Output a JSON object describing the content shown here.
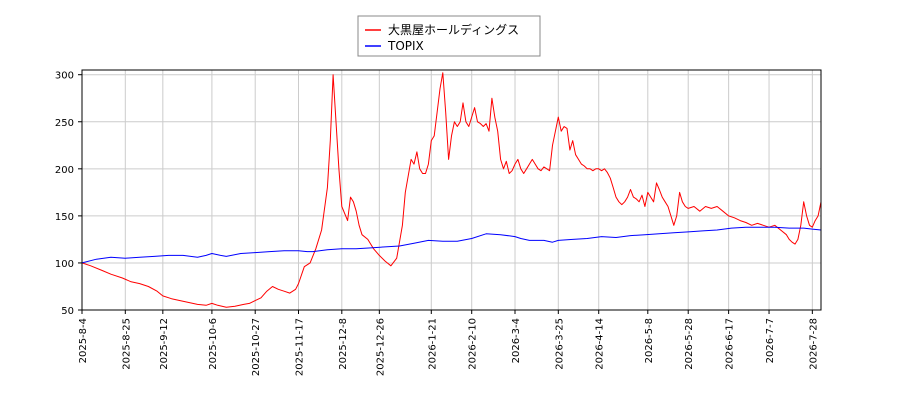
{
  "chart_data": {
    "type": "line",
    "xlabel": "",
    "ylabel": "",
    "ylim": [
      50,
      305
    ],
    "y_ticks": [
      50,
      100,
      150,
      200,
      250,
      300
    ],
    "x_ticks": [
      "2025-8-4",
      "2025-8-25",
      "2025-9-12",
      "2025-10-6",
      "2025-10-27",
      "2025-11-17",
      "2025-12-8",
      "2025-12-26",
      "2026-1-21",
      "2026-2-10",
      "2026-3-4",
      "2026-3-25",
      "2026-4-14",
      "2026-5-8",
      "2026-5-28",
      "2026-6-17",
      "2026-7-7",
      "2026-7-28"
    ],
    "x_tick_index": [
      0,
      15,
      28,
      45,
      60,
      75,
      90,
      103,
      121,
      135,
      150,
      165,
      179,
      196,
      210,
      224,
      238,
      253
    ],
    "grid": true,
    "legend_placement": "top-center",
    "series": [
      {
        "name": "大黒屋ホールディングス",
        "color": "#ff0000",
        "points": [
          [
            0,
            100
          ],
          [
            3,
            97
          ],
          [
            7,
            92
          ],
          [
            10,
            88
          ],
          [
            14,
            84
          ],
          [
            17,
            80
          ],
          [
            20,
            78
          ],
          [
            23,
            75
          ],
          [
            26,
            70
          ],
          [
            28,
            65
          ],
          [
            31,
            62
          ],
          [
            34,
            60
          ],
          [
            37,
            58
          ],
          [
            40,
            56
          ],
          [
            43,
            55
          ],
          [
            45,
            57
          ],
          [
            47,
            55
          ],
          [
            50,
            53
          ],
          [
            53,
            54
          ],
          [
            56,
            56
          ],
          [
            58,
            57
          ],
          [
            60,
            60
          ],
          [
            62,
            63
          ],
          [
            64,
            70
          ],
          [
            66,
            75
          ],
          [
            68,
            72
          ],
          [
            70,
            70
          ],
          [
            72,
            68
          ],
          [
            74,
            72
          ],
          [
            75,
            78
          ],
          [
            77,
            96
          ],
          [
            79,
            100
          ],
          [
            81,
            115
          ],
          [
            83,
            135
          ],
          [
            85,
            180
          ],
          [
            86,
            230
          ],
          [
            87,
            300
          ],
          [
            88,
            250
          ],
          [
            89,
            200
          ],
          [
            90,
            160
          ],
          [
            92,
            145
          ],
          [
            93,
            170
          ],
          [
            94,
            165
          ],
          [
            95,
            155
          ],
          [
            96,
            140
          ],
          [
            97,
            130
          ],
          [
            99,
            125
          ],
          [
            101,
            115
          ],
          [
            103,
            108
          ],
          [
            105,
            102
          ],
          [
            107,
            97
          ],
          [
            109,
            105
          ],
          [
            111,
            140
          ],
          [
            112,
            175
          ],
          [
            114,
            210
          ],
          [
            115,
            205
          ],
          [
            116,
            218
          ],
          [
            117,
            200
          ],
          [
            118,
            195
          ],
          [
            119,
            195
          ],
          [
            120,
            205
          ],
          [
            121,
            230
          ],
          [
            122,
            235
          ],
          [
            123,
            260
          ],
          [
            124,
            285
          ],
          [
            125,
            302
          ],
          [
            126,
            260
          ],
          [
            127,
            210
          ],
          [
            128,
            235
          ],
          [
            129,
            250
          ],
          [
            130,
            245
          ],
          [
            131,
            250
          ],
          [
            132,
            270
          ],
          [
            133,
            250
          ],
          [
            134,
            245
          ],
          [
            135,
            255
          ],
          [
            136,
            265
          ],
          [
            137,
            250
          ],
          [
            138,
            248
          ],
          [
            139,
            245
          ],
          [
            140,
            248
          ],
          [
            141,
            240
          ],
          [
            142,
            275
          ],
          [
            143,
            255
          ],
          [
            144,
            240
          ],
          [
            145,
            210
          ],
          [
            146,
            200
          ],
          [
            147,
            208
          ],
          [
            148,
            195
          ],
          [
            149,
            198
          ],
          [
            150,
            205
          ],
          [
            151,
            210
          ],
          [
            152,
            200
          ],
          [
            153,
            195
          ],
          [
            154,
            200
          ],
          [
            155,
            205
          ],
          [
            156,
            210
          ],
          [
            157,
            205
          ],
          [
            158,
            200
          ],
          [
            159,
            198
          ],
          [
            160,
            202
          ],
          [
            161,
            200
          ],
          [
            162,
            198
          ],
          [
            163,
            225
          ],
          [
            164,
            240
          ],
          [
            165,
            255
          ],
          [
            166,
            240
          ],
          [
            167,
            245
          ],
          [
            168,
            243
          ],
          [
            169,
            220
          ],
          [
            170,
            230
          ],
          [
            171,
            215
          ],
          [
            172,
            210
          ],
          [
            173,
            205
          ],
          [
            174,
            203
          ],
          [
            175,
            200
          ],
          [
            176,
            200
          ],
          [
            177,
            198
          ],
          [
            178,
            200
          ],
          [
            179,
            200
          ],
          [
            180,
            198
          ],
          [
            181,
            200
          ],
          [
            182,
            196
          ],
          [
            183,
            190
          ],
          [
            184,
            180
          ],
          [
            185,
            170
          ],
          [
            186,
            165
          ],
          [
            187,
            162
          ],
          [
            188,
            165
          ],
          [
            189,
            170
          ],
          [
            190,
            178
          ],
          [
            191,
            170
          ],
          [
            192,
            168
          ],
          [
            193,
            165
          ],
          [
            194,
            172
          ],
          [
            195,
            160
          ],
          [
            196,
            175
          ],
          [
            197,
            170
          ],
          [
            198,
            165
          ],
          [
            199,
            185
          ],
          [
            200,
            178
          ],
          [
            201,
            170
          ],
          [
            202,
            165
          ],
          [
            203,
            160
          ],
          [
            204,
            150
          ],
          [
            205,
            140
          ],
          [
            206,
            150
          ],
          [
            207,
            175
          ],
          [
            208,
            165
          ],
          [
            209,
            160
          ],
          [
            210,
            158
          ],
          [
            212,
            160
          ],
          [
            214,
            155
          ],
          [
            216,
            160
          ],
          [
            218,
            158
          ],
          [
            220,
            160
          ],
          [
            222,
            155
          ],
          [
            224,
            150
          ],
          [
            226,
            148
          ],
          [
            228,
            145
          ],
          [
            230,
            143
          ],
          [
            232,
            140
          ],
          [
            234,
            142
          ],
          [
            236,
            140
          ],
          [
            238,
            138
          ],
          [
            240,
            140
          ],
          [
            242,
            135
          ],
          [
            244,
            130
          ],
          [
            245,
            125
          ],
          [
            246,
            122
          ],
          [
            247,
            120
          ],
          [
            248,
            125
          ],
          [
            249,
            140
          ],
          [
            250,
            165
          ],
          [
            251,
            150
          ],
          [
            252,
            140
          ],
          [
            253,
            138
          ],
          [
            254,
            145
          ],
          [
            255,
            150
          ],
          [
            256,
            165
          ]
        ]
      },
      {
        "name": "TOPIX",
        "color": "#0000ff",
        "points": [
          [
            0,
            100
          ],
          [
            5,
            104
          ],
          [
            10,
            106
          ],
          [
            15,
            105
          ],
          [
            20,
            106
          ],
          [
            25,
            107
          ],
          [
            30,
            108
          ],
          [
            35,
            108
          ],
          [
            40,
            106
          ],
          [
            43,
            108
          ],
          [
            45,
            110
          ],
          [
            48,
            108
          ],
          [
            50,
            107
          ],
          [
            55,
            110
          ],
          [
            60,
            111
          ],
          [
            65,
            112
          ],
          [
            70,
            113
          ],
          [
            75,
            113
          ],
          [
            78,
            112
          ],
          [
            80,
            112
          ],
          [
            85,
            114
          ],
          [
            90,
            115
          ],
          [
            95,
            115
          ],
          [
            100,
            116
          ],
          [
            105,
            117
          ],
          [
            110,
            118
          ],
          [
            115,
            121
          ],
          [
            120,
            124
          ],
          [
            125,
            123
          ],
          [
            130,
            123
          ],
          [
            135,
            126
          ],
          [
            140,
            131
          ],
          [
            145,
            130
          ],
          [
            150,
            128
          ],
          [
            152,
            126
          ],
          [
            155,
            124
          ],
          [
            160,
            124
          ],
          [
            163,
            122
          ],
          [
            165,
            124
          ],
          [
            170,
            125
          ],
          [
            175,
            126
          ],
          [
            180,
            128
          ],
          [
            185,
            127
          ],
          [
            190,
            129
          ],
          [
            195,
            130
          ],
          [
            200,
            131
          ],
          [
            205,
            132
          ],
          [
            210,
            133
          ],
          [
            215,
            134
          ],
          [
            220,
            135
          ],
          [
            225,
            137
          ],
          [
            230,
            138
          ],
          [
            235,
            138
          ],
          [
            240,
            138
          ],
          [
            245,
            137
          ],
          [
            250,
            137
          ],
          [
            253,
            136
          ],
          [
            256,
            135
          ]
        ]
      }
    ]
  }
}
